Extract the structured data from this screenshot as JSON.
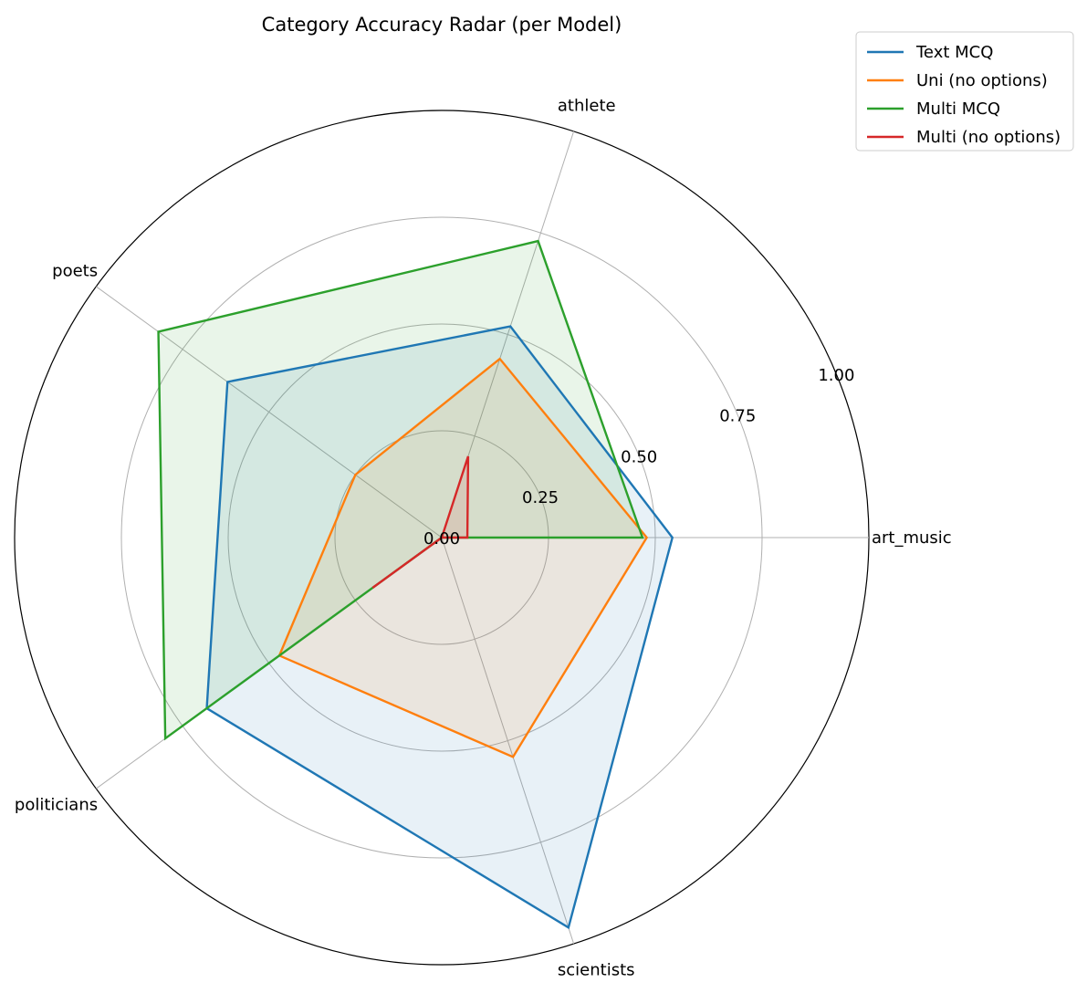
{
  "chart_data": {
    "type": "radar",
    "title": "Category Accuracy Radar (per Model)",
    "categories": [
      "art_music",
      "athlete",
      "poets",
      "politicians",
      "scientists"
    ],
    "rlim": [
      0,
      1.0
    ],
    "rticks": [
      0.0,
      0.25,
      0.5,
      0.75,
      1.0
    ],
    "rtick_labels": [
      "0.00",
      "0.25",
      "0.50",
      "0.75",
      "1.00"
    ],
    "grid": true,
    "legend_position": "top-right",
    "series": [
      {
        "name": "Text MCQ",
        "color": "#1f77b4",
        "values": [
          0.54,
          0.52,
          0.62,
          0.68,
          0.96
        ]
      },
      {
        "name": "Uni (no options)",
        "color": "#ff7f0e",
        "values": [
          0.48,
          0.44,
          0.25,
          0.47,
          0.54
        ]
      },
      {
        "name": "Multi MCQ",
        "color": "#2ca02c",
        "values": [
          0.47,
          0.73,
          0.82,
          0.8,
          0.0
        ]
      },
      {
        "name": "Multi (no options)",
        "color": "#d62728",
        "values": [
          0.06,
          0.2,
          0.0,
          0.2,
          0.0
        ]
      }
    ]
  }
}
